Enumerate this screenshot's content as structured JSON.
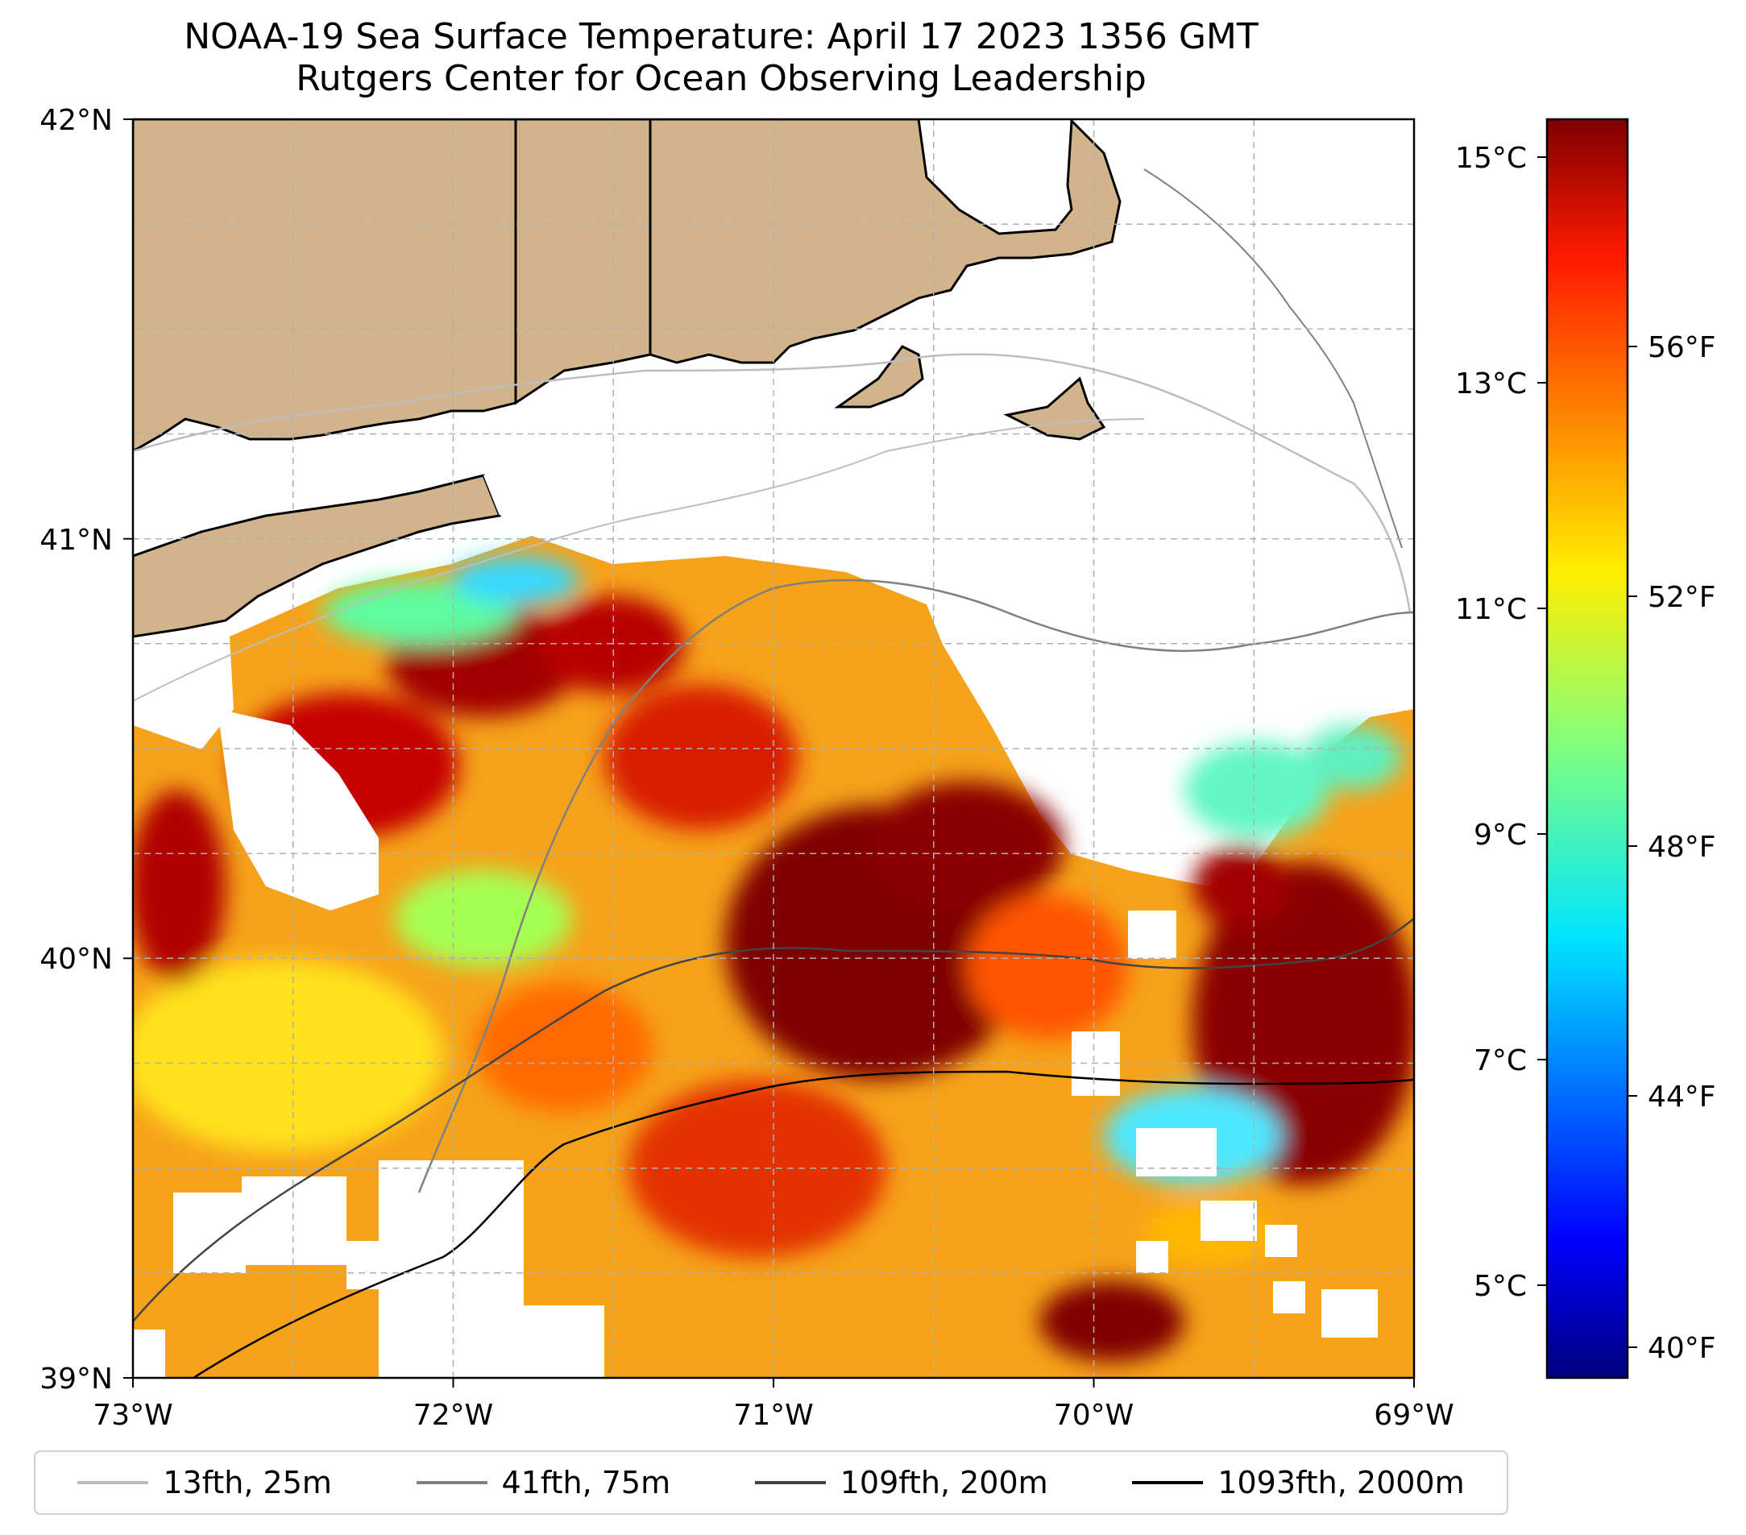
{
  "title": {
    "line1": "NOAA-19 Sea Surface Temperature: April 17 2023 1356 GMT",
    "line2": "Rutgers Center for Ocean Observing Leadership"
  },
  "map": {
    "lon_range": [
      -73,
      -69
    ],
    "lat_range": [
      39,
      42
    ],
    "x_ticks": [
      "73°W",
      "72°W",
      "71°W",
      "70°W",
      "69°W"
    ],
    "y_ticks": [
      "42°N",
      "41°N",
      "40°N",
      "39°N"
    ],
    "grid": true,
    "land_color": "#d2b48c"
  },
  "colorbar": {
    "colormap": "jet",
    "celsius_ticks": [
      "15°C",
      "13°C",
      "11°C",
      "9°C",
      "7°C",
      "5°C"
    ],
    "fahrenheit_ticks": [
      "56°F",
      "52°F",
      "48°F",
      "44°F",
      "40°F"
    ]
  },
  "legend": {
    "items": [
      {
        "label": "13fth, 25m",
        "color": "#bdbdbd"
      },
      {
        "label": "41fth, 75m",
        "color": "#808080"
      },
      {
        "label": "109fth, 200m",
        "color": "#444444"
      },
      {
        "label": "1093fth, 2000m",
        "color": "#000000"
      }
    ]
  }
}
